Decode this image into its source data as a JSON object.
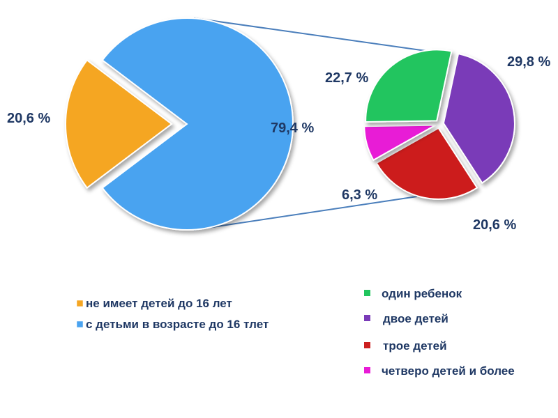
{
  "chart_data": [
    {
      "type": "pie",
      "title": "",
      "labels": [
        "не имеет детей до 16 лет",
        "с детьми в возрасте до 16 тлет"
      ],
      "values": [
        20.6,
        79.4
      ],
      "value_labels": [
        "20,6 %",
        "79,4 %"
      ],
      "colors": [
        "#f5a623",
        "#4aa3f0"
      ],
      "exploded": [
        true,
        false
      ],
      "legend": "bottom-left"
    },
    {
      "type": "pie",
      "title": "",
      "labels": [
        "один ребенок",
        "двое детей",
        "трое детей",
        "четверо детей и более"
      ],
      "values": [
        22.7,
        29.8,
        20.6,
        6.3
      ],
      "value_labels": [
        "22,7 %",
        "29,8 %",
        "20,6 %",
        "6,3 %"
      ],
      "colors": [
        "#22c55e",
        "#7a3bb8",
        "#cc1f1f",
        "#e81bd6"
      ],
      "exploded": [
        true,
        true,
        true,
        true
      ],
      "legend": "bottom-right",
      "breakdown_of": "с детьми в возрасте до 16 тлет"
    }
  ]
}
